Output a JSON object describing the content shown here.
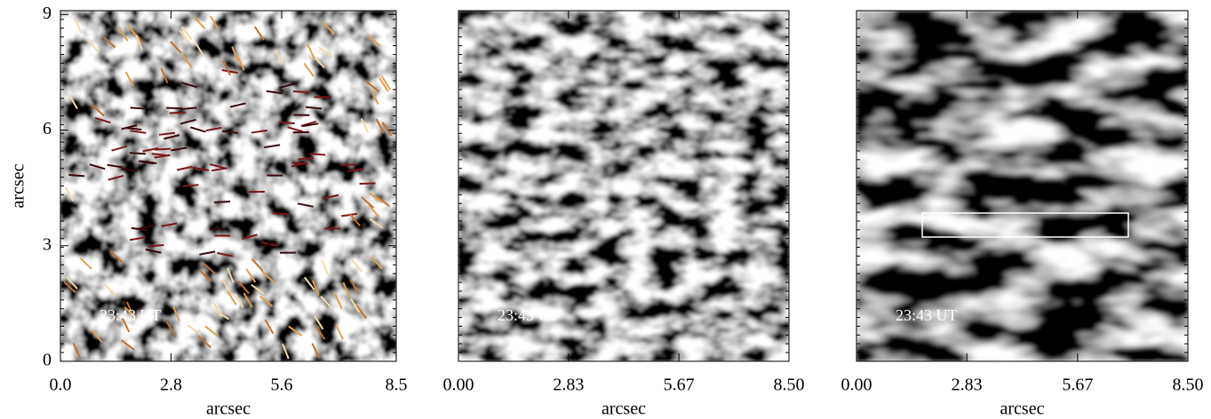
{
  "chart_data": [
    {
      "type": "image",
      "annotation": "23:43 UT",
      "xlabel": "arcsec",
      "ylabel": "arcsec",
      "xlim": [
        0,
        8.5
      ],
      "ylim": [
        0,
        9.1
      ],
      "xticks": [
        {
          "value": 0,
          "label": "0.0"
        },
        2.8,
        5.6,
        8.5
      ],
      "yticks": [
        0,
        3,
        6,
        9
      ]
    },
    {
      "type": "image",
      "annotation": "23:43 UT",
      "xlabel": "arcsec",
      "xlim": [
        0,
        8.5
      ],
      "ylim": [
        0,
        9.1
      ],
      "xticks": [
        {
          "value": 0,
          "label": "0.00"
        },
        2.83,
        5.67,
        {
          "value": 8.5,
          "label": "8.50"
        }
      ]
    },
    {
      "type": "image",
      "annotation": "23:43 UT",
      "xlabel": "arcsec",
      "xlim": [
        0,
        8.5
      ],
      "ylim": [
        0,
        9.1
      ],
      "xticks": [
        {
          "value": 0,
          "label": "0.00"
        },
        2.83,
        5.67,
        {
          "value": 8.5,
          "label": "8.50"
        }
      ]
    }
  ]
}
